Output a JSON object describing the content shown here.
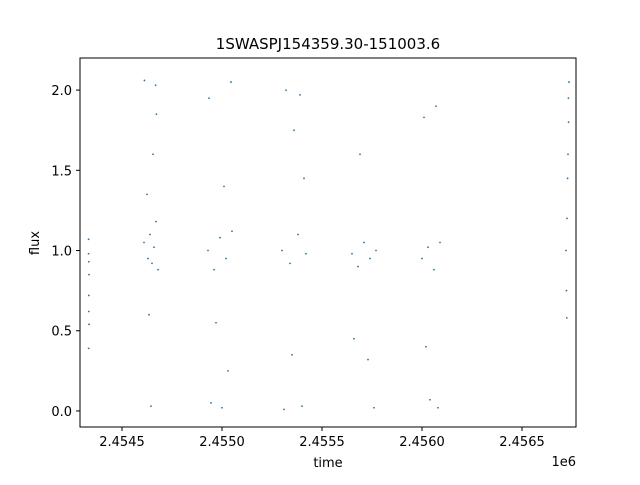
{
  "chart_data": {
    "type": "scatter",
    "title": "1SWASPJ154359.30-151003.6",
    "xlabel": "time",
    "ylabel": "flux",
    "x_offset_label": "1e6",
    "xlim": [
      2454290,
      2456770
    ],
    "ylim": [
      -0.1,
      2.2
    ],
    "x_ticks": [
      2454500,
      2455000,
      2455500,
      2456000,
      2456500
    ],
    "x_tick_labels": [
      "2.4545",
      "2.4550",
      "2.4555",
      "2.4560",
      "2.4565"
    ],
    "y_ticks": [
      0.0,
      0.5,
      1.0,
      1.5,
      2.0
    ],
    "y_tick_labels": [
      "0.0",
      "0.5",
      "1.0",
      "1.5",
      "2.0"
    ],
    "grid": false,
    "legend": false,
    "marker_color": "#1f77b4",
    "series": [
      {
        "values": [
          {
            "x": 2454333,
            "y": 1.07
          },
          {
            "x": 2454333,
            "y": 0.98
          },
          {
            "x": 2454334,
            "y": 0.72
          },
          {
            "x": 2454334,
            "y": 0.62
          },
          {
            "x": 2454335,
            "y": 0.54
          },
          {
            "x": 2454333,
            "y": 0.39
          },
          {
            "x": 2454335,
            "y": 0.85
          },
          {
            "x": 2454334,
            "y": 0.93
          },
          {
            "x": 2454610,
            "y": 1.05
          },
          {
            "x": 2454630,
            "y": 0.95
          },
          {
            "x": 2454640,
            "y": 1.1
          },
          {
            "x": 2454650,
            "y": 0.92
          },
          {
            "x": 2454660,
            "y": 1.02
          },
          {
            "x": 2454670,
            "y": 1.18
          },
          {
            "x": 2454680,
            "y": 0.88
          },
          {
            "x": 2454625,
            "y": 1.35
          },
          {
            "x": 2454655,
            "y": 1.6
          },
          {
            "x": 2454612,
            "y": 2.06
          },
          {
            "x": 2454668,
            "y": 2.03
          },
          {
            "x": 2454645,
            "y": 0.03
          },
          {
            "x": 2454635,
            "y": 0.6
          },
          {
            "x": 2454672,
            "y": 1.85
          },
          {
            "x": 2454930,
            "y": 1.0
          },
          {
            "x": 2454960,
            "y": 0.88
          },
          {
            "x": 2454990,
            "y": 1.08
          },
          {
            "x": 2455020,
            "y": 0.95
          },
          {
            "x": 2455050,
            "y": 1.12
          },
          {
            "x": 2454945,
            "y": 0.05
          },
          {
            "x": 2455000,
            "y": 0.02
          },
          {
            "x": 2455030,
            "y": 0.25
          },
          {
            "x": 2454935,
            "y": 1.95
          },
          {
            "x": 2455045,
            "y": 2.05
          },
          {
            "x": 2454970,
            "y": 0.55
          },
          {
            "x": 2455010,
            "y": 1.4
          },
          {
            "x": 2455300,
            "y": 1.0
          },
          {
            "x": 2455340,
            "y": 0.92
          },
          {
            "x": 2455380,
            "y": 1.1
          },
          {
            "x": 2455420,
            "y": 0.98
          },
          {
            "x": 2455310,
            "y": 0.01
          },
          {
            "x": 2455400,
            "y": 0.03
          },
          {
            "x": 2455320,
            "y": 2.0
          },
          {
            "x": 2455390,
            "y": 1.97
          },
          {
            "x": 2455350,
            "y": 0.35
          },
          {
            "x": 2455410,
            "y": 1.45
          },
          {
            "x": 2455360,
            "y": 1.75
          },
          {
            "x": 2455650,
            "y": 0.98
          },
          {
            "x": 2455680,
            "y": 0.9
          },
          {
            "x": 2455710,
            "y": 1.05
          },
          {
            "x": 2455740,
            "y": 0.95
          },
          {
            "x": 2455770,
            "y": 1.0
          },
          {
            "x": 2455690,
            "y": 1.6
          },
          {
            "x": 2455760,
            "y": 0.02
          },
          {
            "x": 2455730,
            "y": 0.32
          },
          {
            "x": 2455660,
            "y": 0.45
          },
          {
            "x": 2456000,
            "y": 0.95
          },
          {
            "x": 2456030,
            "y": 1.02
          },
          {
            "x": 2456060,
            "y": 0.88
          },
          {
            "x": 2456090,
            "y": 1.05
          },
          {
            "x": 2456010,
            "y": 1.83
          },
          {
            "x": 2456070,
            "y": 1.9
          },
          {
            "x": 2456040,
            "y": 0.07
          },
          {
            "x": 2456080,
            "y": 0.02
          },
          {
            "x": 2456020,
            "y": 0.4
          },
          {
            "x": 2456720,
            "y": 1.0
          },
          {
            "x": 2456725,
            "y": 1.2
          },
          {
            "x": 2456728,
            "y": 1.45
          },
          {
            "x": 2456730,
            "y": 1.6
          },
          {
            "x": 2456733,
            "y": 1.8
          },
          {
            "x": 2456735,
            "y": 2.05
          },
          {
            "x": 2456722,
            "y": 0.75
          },
          {
            "x": 2456724,
            "y": 0.58
          },
          {
            "x": 2456732,
            "y": 1.95
          }
        ]
      }
    ]
  }
}
